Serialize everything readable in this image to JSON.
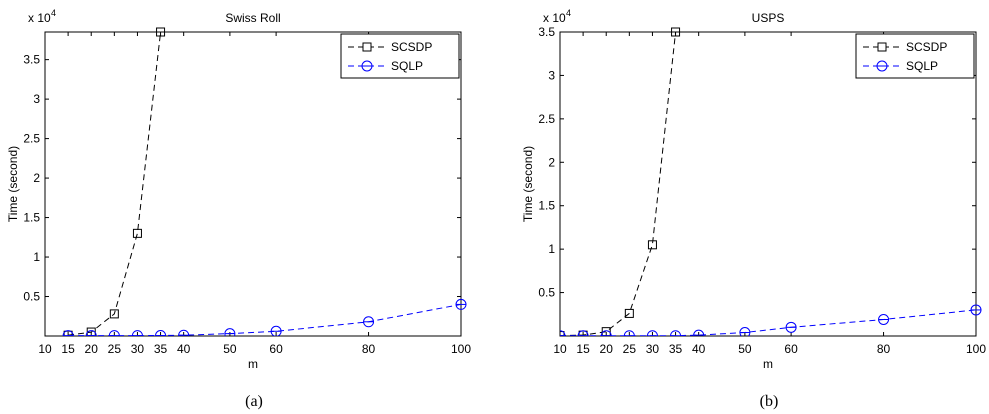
{
  "chart_data": [
    {
      "type": "line",
      "title": "Swiss Roll",
      "xlabel": "m",
      "ylabel": "Time (second)",
      "y_multiplier_label": "x 10",
      "y_multiplier_exp": "4",
      "caption": "(a)",
      "xlim": [
        10,
        100
      ],
      "ylim": [
        0,
        3.85
      ],
      "xticks": [
        10,
        15,
        20,
        25,
        30,
        35,
        40,
        50,
        60,
        80,
        100
      ],
      "yticks": [
        0.5,
        1,
        1.5,
        2,
        2.5,
        3,
        3.5
      ],
      "ytick_labels": [
        "0.5",
        "1",
        "1.5",
        "2",
        "2.5",
        "3",
        "3.5"
      ],
      "legend_position": "top-right",
      "grid": false,
      "series": [
        {
          "name": "SCSDP",
          "color": "#000000",
          "marker": "square",
          "x": [
            15,
            20,
            25,
            30,
            35
          ],
          "y": [
            0.01,
            0.05,
            0.28,
            1.3,
            3.85
          ]
        },
        {
          "name": "SQLP",
          "color": "#0000ff",
          "marker": "circle",
          "x": [
            15,
            20,
            25,
            30,
            35,
            40,
            50,
            60,
            80,
            100
          ],
          "y": [
            0.005,
            0.005,
            0.005,
            0.005,
            0.006,
            0.01,
            0.03,
            0.06,
            0.18,
            0.4
          ]
        }
      ]
    },
    {
      "type": "line",
      "title": "USPS",
      "xlabel": "m",
      "ylabel": "Time (second)",
      "y_multiplier_label": "x 10",
      "y_multiplier_exp": "4",
      "caption": "(b)",
      "xlim": [
        10,
        100
      ],
      "ylim": [
        0,
        3.5
      ],
      "xticks": [
        10,
        15,
        20,
        25,
        30,
        35,
        40,
        50,
        60,
        80,
        100
      ],
      "yticks": [
        0.5,
        1,
        1.5,
        2,
        2.5,
        3,
        3.5
      ],
      "ytick_labels": [
        "0.5",
        "1",
        "1.5",
        "2",
        "2.5",
        "3",
        "3.5"
      ],
      "legend_position": "top-right",
      "grid": false,
      "series": [
        {
          "name": "SCSDP",
          "color": "#000000",
          "marker": "square",
          "x": [
            10,
            15,
            20,
            25,
            30,
            35
          ],
          "y": [
            0.005,
            0.01,
            0.05,
            0.26,
            1.05,
            3.5
          ]
        },
        {
          "name": "SQLP",
          "color": "#0000ff",
          "marker": "circle",
          "x": [
            10,
            15,
            20,
            25,
            30,
            35,
            40,
            50,
            60,
            80,
            100
          ],
          "y": [
            0.003,
            0.003,
            0.003,
            0.003,
            0.003,
            0.003,
            0.01,
            0.04,
            0.1,
            0.19,
            0.3
          ]
        }
      ]
    }
  ]
}
